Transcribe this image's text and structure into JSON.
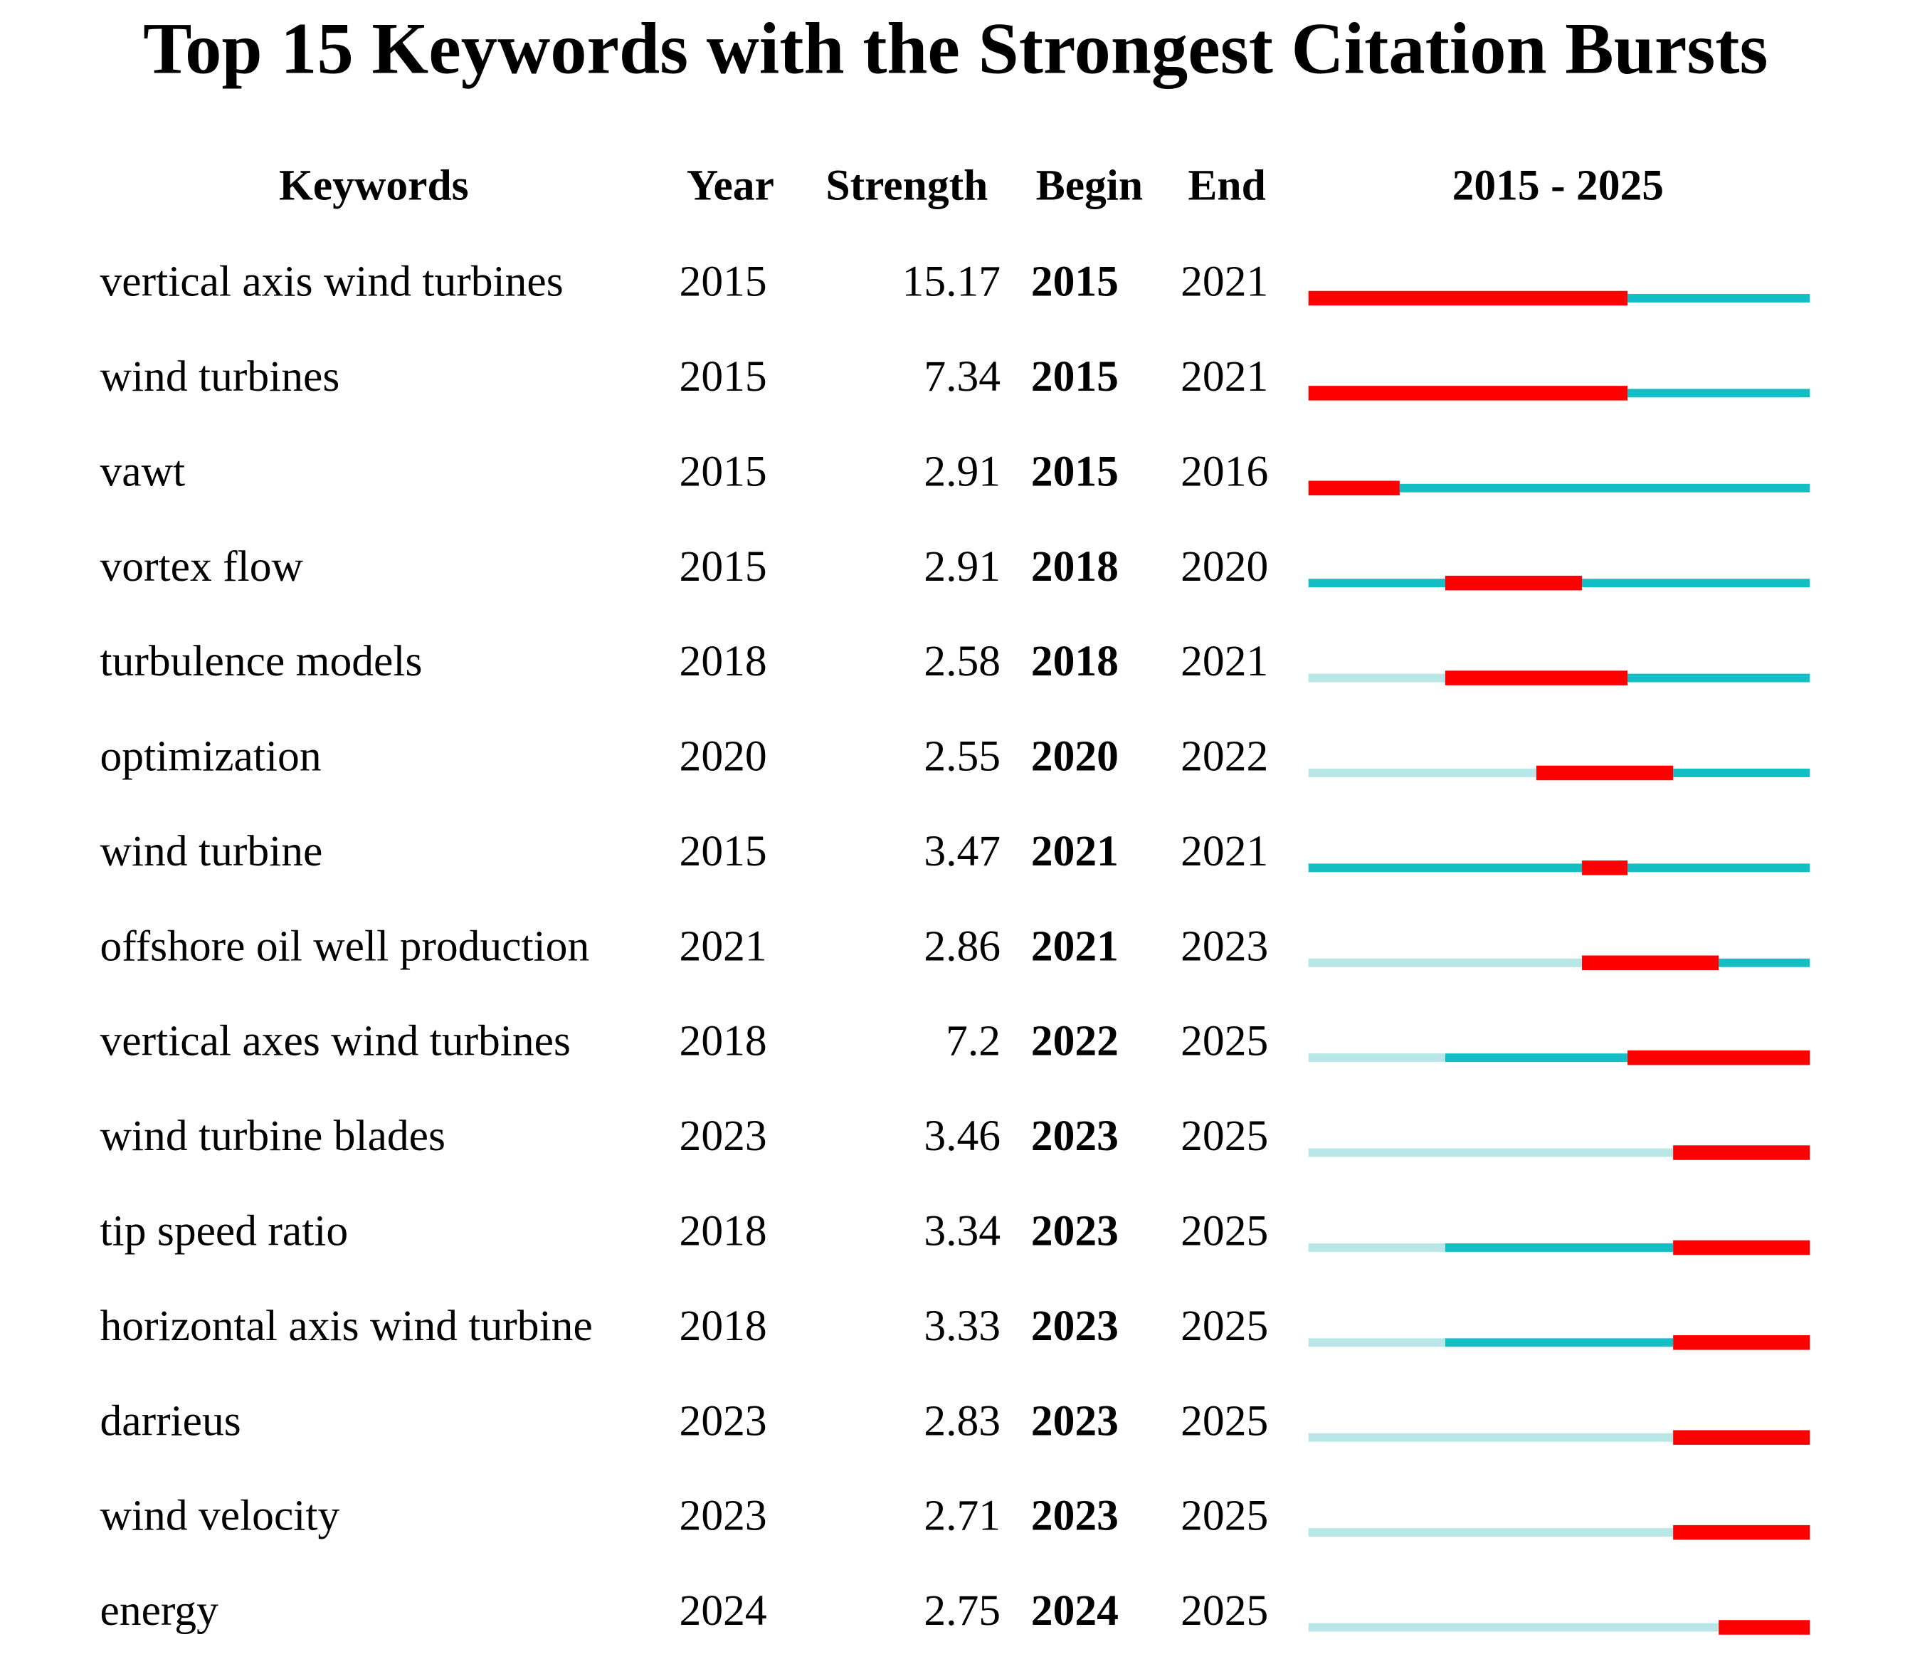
{
  "title": "Top 15 Keywords with the Strongest Citation Bursts",
  "header": {
    "keywords": "Keywords",
    "year": "Year",
    "strength": "Strength",
    "begin": "Begin",
    "end": "End",
    "range": "2015 - 2025"
  },
  "timeline": {
    "start": 2015,
    "end": 2025
  },
  "rows": [
    {
      "keyword": "vertical axis wind turbines",
      "year": 2015,
      "strength": 15.17,
      "begin": 2015,
      "end": 2021
    },
    {
      "keyword": "wind turbines",
      "year": 2015,
      "strength": 7.34,
      "begin": 2015,
      "end": 2021
    },
    {
      "keyword": "vawt",
      "year": 2015,
      "strength": 2.91,
      "begin": 2015,
      "end": 2016
    },
    {
      "keyword": "vortex flow",
      "year": 2015,
      "strength": 2.91,
      "begin": 2018,
      "end": 2020
    },
    {
      "keyword": "turbulence models",
      "year": 2018,
      "strength": 2.58,
      "begin": 2018,
      "end": 2021
    },
    {
      "keyword": "optimization",
      "year": 2020,
      "strength": 2.55,
      "begin": 2020,
      "end": 2022
    },
    {
      "keyword": "wind turbine",
      "year": 2015,
      "strength": 3.47,
      "begin": 2021,
      "end": 2021
    },
    {
      "keyword": "offshore oil well production",
      "year": 2021,
      "strength": 2.86,
      "begin": 2021,
      "end": 2023
    },
    {
      "keyword": "vertical axes wind turbines",
      "year": 2018,
      "strength": 7.2,
      "begin": 2022,
      "end": 2025
    },
    {
      "keyword": "wind turbine blades",
      "year": 2023,
      "strength": 3.46,
      "begin": 2023,
      "end": 2025
    },
    {
      "keyword": "tip speed ratio",
      "year": 2018,
      "strength": 3.34,
      "begin": 2023,
      "end": 2025
    },
    {
      "keyword": "horizontal axis wind turbine",
      "year": 2018,
      "strength": 3.33,
      "begin": 2023,
      "end": 2025
    },
    {
      "keyword": "darrieus",
      "year": 2023,
      "strength": 2.83,
      "begin": 2023,
      "end": 2025
    },
    {
      "keyword": "wind velocity",
      "year": 2023,
      "strength": 2.71,
      "begin": 2023,
      "end": 2025
    },
    {
      "keyword": "energy",
      "year": 2024,
      "strength": 2.75,
      "begin": 2024,
      "end": 2025
    }
  ]
}
